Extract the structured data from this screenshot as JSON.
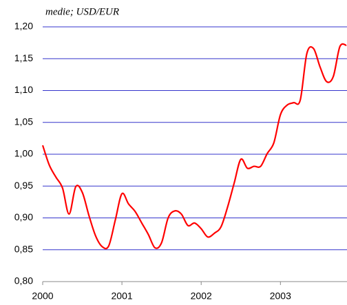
{
  "chart_data": {
    "type": "line",
    "subtitle": "medie; USD/EUR",
    "x": [
      2000.0,
      2000.083,
      2000.167,
      2000.25,
      2000.333,
      2000.417,
      2000.5,
      2000.583,
      2000.667,
      2000.75,
      2000.833,
      2000.917,
      2001.0,
      2001.083,
      2001.167,
      2001.25,
      2001.333,
      2001.417,
      2001.5,
      2001.583,
      2001.667,
      2001.75,
      2001.833,
      2001.917,
      2002.0,
      2002.083,
      2002.167,
      2002.25,
      2002.333,
      2002.417,
      2002.5,
      2002.583,
      2002.667,
      2002.75,
      2002.833,
      2002.917,
      2003.0,
      2003.083,
      2003.167,
      2003.25,
      2003.333,
      2003.417,
      2003.5,
      2003.583,
      2003.667,
      2003.75,
      2003.833
    ],
    "series": [
      {
        "color": "#ff0000",
        "values": [
          1.014,
          0.983,
          0.964,
          0.947,
          0.906,
          0.949,
          0.94,
          0.904,
          0.872,
          0.855,
          0.856,
          0.897,
          0.938,
          0.922,
          0.91,
          0.892,
          0.874,
          0.853,
          0.861,
          0.9,
          0.911,
          0.906,
          0.888,
          0.892,
          0.883,
          0.87,
          0.876,
          0.886,
          0.917,
          0.955,
          0.992,
          0.978,
          0.981,
          0.981,
          1.001,
          1.018,
          1.062,
          1.077,
          1.081,
          1.085,
          1.158,
          1.166,
          1.137,
          1.114,
          1.122,
          1.169,
          1.171
        ]
      }
    ],
    "xlim": [
      2000,
      2003.84
    ],
    "xticks": [
      2000,
      2001,
      2002,
      2003
    ],
    "ylim": [
      0.8,
      1.2
    ],
    "yticks": [
      {
        "value": 0.8,
        "label": "0,80"
      },
      {
        "value": 0.85,
        "label": "0,85"
      },
      {
        "value": 0.9,
        "label": "0,90"
      },
      {
        "value": 0.95,
        "label": "0,95"
      },
      {
        "value": 1.0,
        "label": "1,00"
      },
      {
        "value": 1.05,
        "label": "1,05"
      },
      {
        "value": 1.1,
        "label": "1,10"
      },
      {
        "value": 1.15,
        "label": "1,15"
      },
      {
        "value": 1.2,
        "label": "1,20"
      }
    ],
    "grid": true,
    "grid_color": "#3333cc"
  }
}
